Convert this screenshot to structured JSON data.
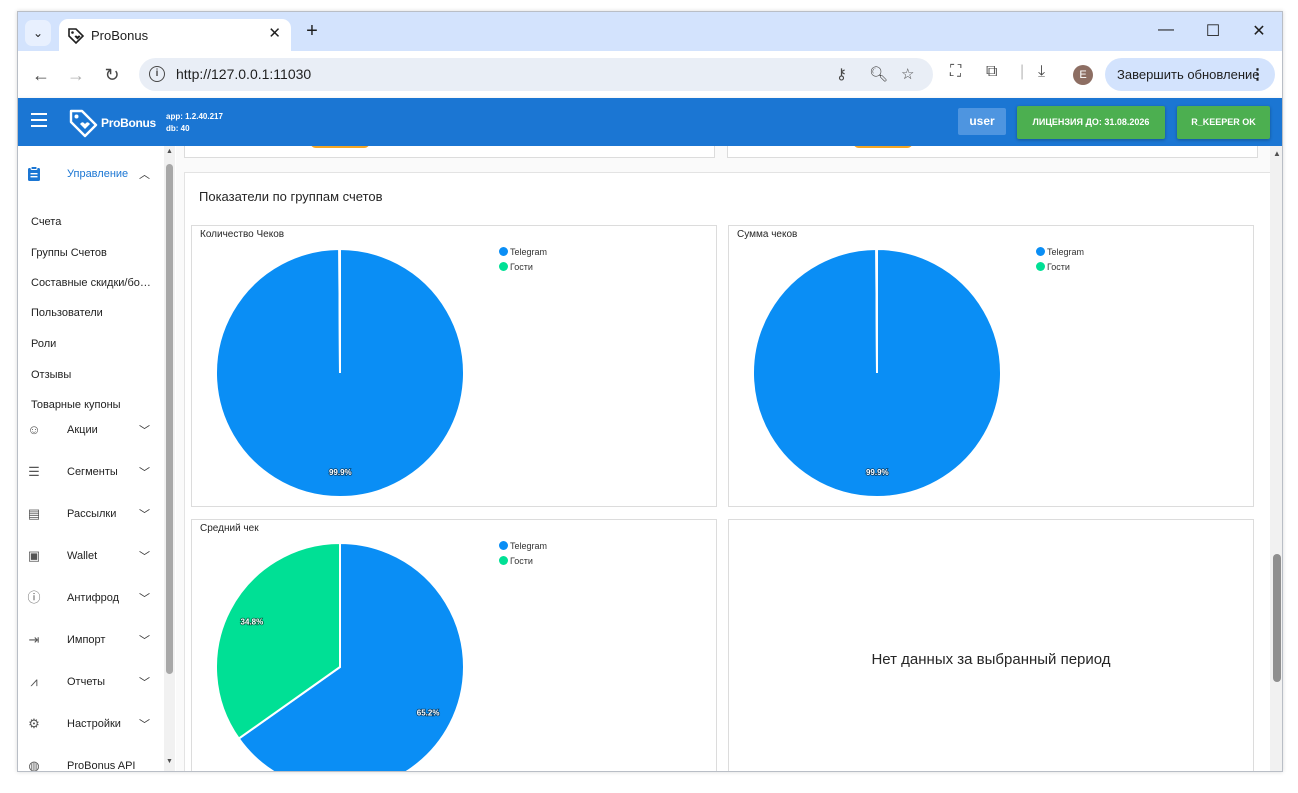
{
  "browser": {
    "tab_title": "ProBonus",
    "tab_close": "✕",
    "new_tab": "+",
    "url": "http://127.0.0.1:11030",
    "profile_initial": "E",
    "update_label": "Завершить обновление",
    "window_controls": {
      "minimize": "—",
      "maximize": "☐",
      "close": "✕"
    }
  },
  "appbar": {
    "logo_text": "ProBonus",
    "app_version": "app: 1.2.40.217",
    "db_version": "db: 40",
    "user_label": "user",
    "license_label": "ЛИЦЕНЗИЯ ДО: 31.08.2026",
    "keeper_label": "R_KEEPER OK",
    "accent": "#1b76d3",
    "ok_color": "#4caf50"
  },
  "sidebar": {
    "active_group": {
      "label": "Управление",
      "icon": "clipboard-icon"
    },
    "sub_items": [
      "Счета",
      "Группы Счетов",
      "Составные скидки/бонусы",
      "Пользователи",
      "Роли",
      "Отзывы",
      "Товарные купоны"
    ],
    "groups": [
      {
        "label": "Акции",
        "icon": "smile-icon"
      },
      {
        "label": "Сегменты",
        "icon": "list-icon"
      },
      {
        "label": "Рассылки",
        "icon": "mail-icon"
      },
      {
        "label": "Wallet",
        "icon": "wallet-icon"
      },
      {
        "label": "Антифрод",
        "icon": "alert-icon"
      },
      {
        "label": "Импорт",
        "icon": "import-icon"
      },
      {
        "label": "Отчеты",
        "icon": "chart-icon"
      },
      {
        "label": "Настройки",
        "icon": "gear-icon"
      },
      {
        "label": "ProBonus API",
        "icon": "api-icon"
      }
    ]
  },
  "main": {
    "panel_title": "Показатели по группам счетов",
    "no_data_text": "Нет данных за выбранный период"
  },
  "chart_data": [
    {
      "type": "pie",
      "title": "Количество Чеков",
      "legend": "top-right",
      "series": [
        {
          "name": "Telegram",
          "value": 99.9,
          "label": "99.9%",
          "color": "#0a8ef5"
        },
        {
          "name": "Гости",
          "value": 0.1,
          "label": "",
          "color": "#00e095"
        }
      ]
    },
    {
      "type": "pie",
      "title": "Сумма чеков",
      "legend": "top-right",
      "series": [
        {
          "name": "Telegram",
          "value": 99.9,
          "label": "99.9%",
          "color": "#0a8ef5"
        },
        {
          "name": "Гости",
          "value": 0.1,
          "label": "",
          "color": "#00e095"
        }
      ]
    },
    {
      "type": "pie",
      "title": "Средний чек",
      "legend": "top-right",
      "series": [
        {
          "name": "Telegram",
          "value": 65.2,
          "label": "65.2%",
          "color": "#0a8ef5"
        },
        {
          "name": "Гости",
          "value": 34.8,
          "label": "34.8%",
          "color": "#00e095"
        }
      ]
    }
  ]
}
